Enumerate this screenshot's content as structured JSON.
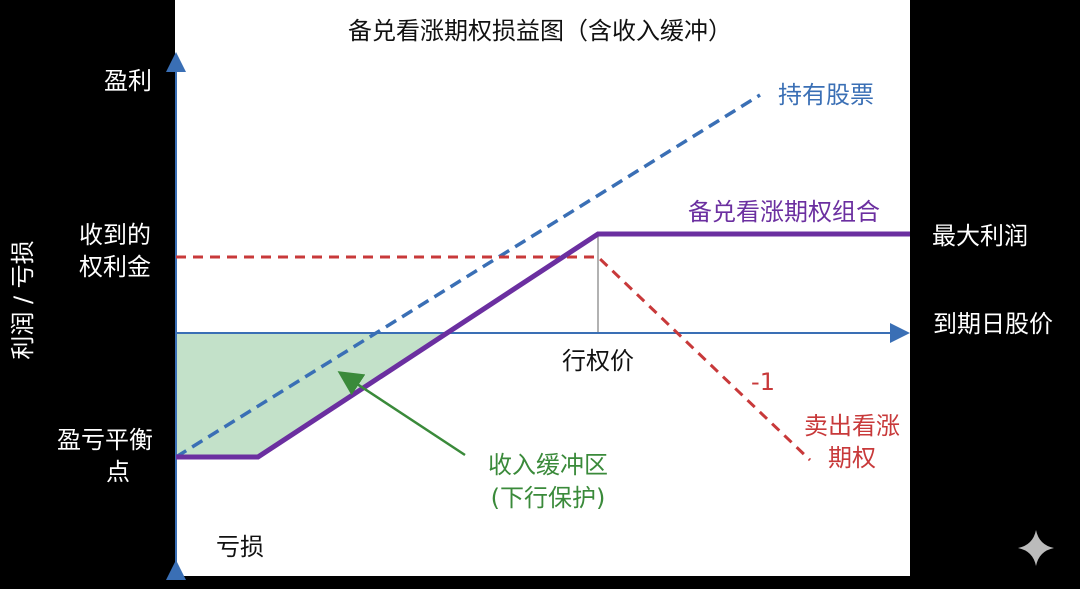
{
  "title": "备兑看涨期权损益图（含收入缓冲）",
  "y_axis": {
    "label": "利润 / 亏损",
    "top": "盈利",
    "bottom": "亏损",
    "premium": [
      "收到的",
      "权利金"
    ],
    "breakeven": [
      "盈亏平衡",
      "点"
    ]
  },
  "x_axis": {
    "label": "到期日股价",
    "strike": "行权价"
  },
  "lines": {
    "stock": "持有股票",
    "covered_call": "备兑看涨期权组合",
    "max_profit": "最大利润",
    "short_call": [
      "卖出看涨",
      "期权"
    ],
    "slope": "-1"
  },
  "buffer": [
    "收入缓冲区",
    "(下行保护)"
  ]
}
